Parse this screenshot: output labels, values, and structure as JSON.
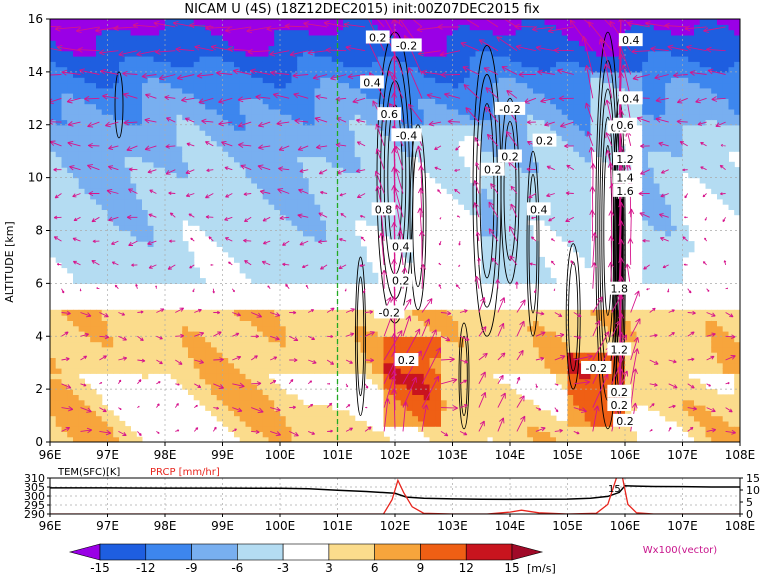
{
  "chart_data": [
    {
      "type": "heatmap",
      "title": "NICAM  U  (4S)  (18Z12DEC2015)  init:00Z07DEC2015  fix",
      "ylabel": "ALTITUDE  [km]",
      "xlabel": "",
      "x_ticks": [
        "96E",
        "97E",
        "98E",
        "99E",
        "100E",
        "101E",
        "102E",
        "103E",
        "104E",
        "105E",
        "106E",
        "107E",
        "108E"
      ],
      "y_ticks": [
        "0",
        "2",
        "4",
        "6",
        "8",
        "10",
        "12",
        "14",
        "16"
      ],
      "xlim": [
        96,
        108
      ],
      "ylim": [
        0,
        16
      ],
      "grid": true,
      "reference_line_lon": 101,
      "colorbar": {
        "levels": [
          "-15",
          "-12",
          "-9",
          "-6",
          "-3",
          "3",
          "6",
          "9",
          "12",
          "15"
        ],
        "colors": [
          "#9a00e6",
          "#1e5ee0",
          "#3d86ee",
          "#78aff0",
          "#b4dcf2",
          "#ffffff",
          "#fbdc8c",
          "#f7a53c",
          "#ef5f14",
          "#c8141e",
          "#a00a28"
        ],
        "unit": "[m/s]"
      },
      "vector_label": "Wx100(vector)",
      "contour_labels": [
        "0.2",
        "-0.2",
        "0.4",
        "0.6",
        "-0.4",
        "0.8",
        "-0.2",
        "0.2",
        "0.2",
        "0.2",
        "0.4",
        "0.8",
        "1.2",
        "1.4",
        "1.6",
        "0.4",
        "0.2",
        "-0.2",
        "0.2",
        "1.8",
        "1.2",
        "-0.2",
        "0.2",
        "0.2",
        "0.4",
        "0.6",
        "0.4",
        "0.2"
      ]
    },
    {
      "type": "line",
      "xlabel": "",
      "series": [
        {
          "name": "TEM(SFC)[K]",
          "color": "#000000",
          "x": [
            96,
            97,
            98,
            99,
            100,
            100.5,
            101,
            101.5,
            102,
            102.2,
            102.5,
            103,
            103.5,
            104,
            104.5,
            105,
            105.4,
            105.7,
            105.9,
            106,
            106.2,
            106.5,
            107,
            107.5,
            108
          ],
          "values": [
            304.5,
            304.5,
            304.4,
            304.4,
            304.3,
            304,
            303.2,
            302.5,
            301.5,
            299.4,
            298.7,
            298.4,
            298.2,
            298.1,
            298.2,
            298.3,
            298.7,
            299.8,
            302,
            305.7,
            305.5,
            305.3,
            305.2,
            305,
            305
          ]
        },
        {
          "name": "PRCP [mm/hr]",
          "color": "#e8261e",
          "x": [
            96,
            98,
            100,
            101.8,
            101.95,
            102.05,
            102.15,
            102.3,
            102.5,
            103,
            103.6,
            104,
            104.2,
            104.5,
            105,
            105.5,
            105.7,
            105.85,
            105.95,
            106.05,
            106.2,
            106.5,
            107,
            108
          ],
          "values": [
            0,
            0,
            0,
            0,
            6,
            14,
            9,
            3,
            0.3,
            0,
            0,
            0.8,
            1.6,
            0.5,
            0,
            0.3,
            4,
            15,
            16,
            4,
            0.5,
            0,
            0,
            0
          ]
        }
      ],
      "y_left_ticks": [
        "310",
        "305",
        "300",
        "295",
        "290"
      ],
      "y_right_ticks": [
        "15",
        "10",
        "5",
        "0"
      ],
      "ylim_left": [
        290,
        310
      ],
      "ylim_right": [
        0,
        15
      ],
      "x_ticks": [
        "96E",
        "97E",
        "98E",
        "99E",
        "100E",
        "101E",
        "102E",
        "103E",
        "104E",
        "105E",
        "106E",
        "107E",
        "108E"
      ],
      "annotation": "15"
    }
  ]
}
